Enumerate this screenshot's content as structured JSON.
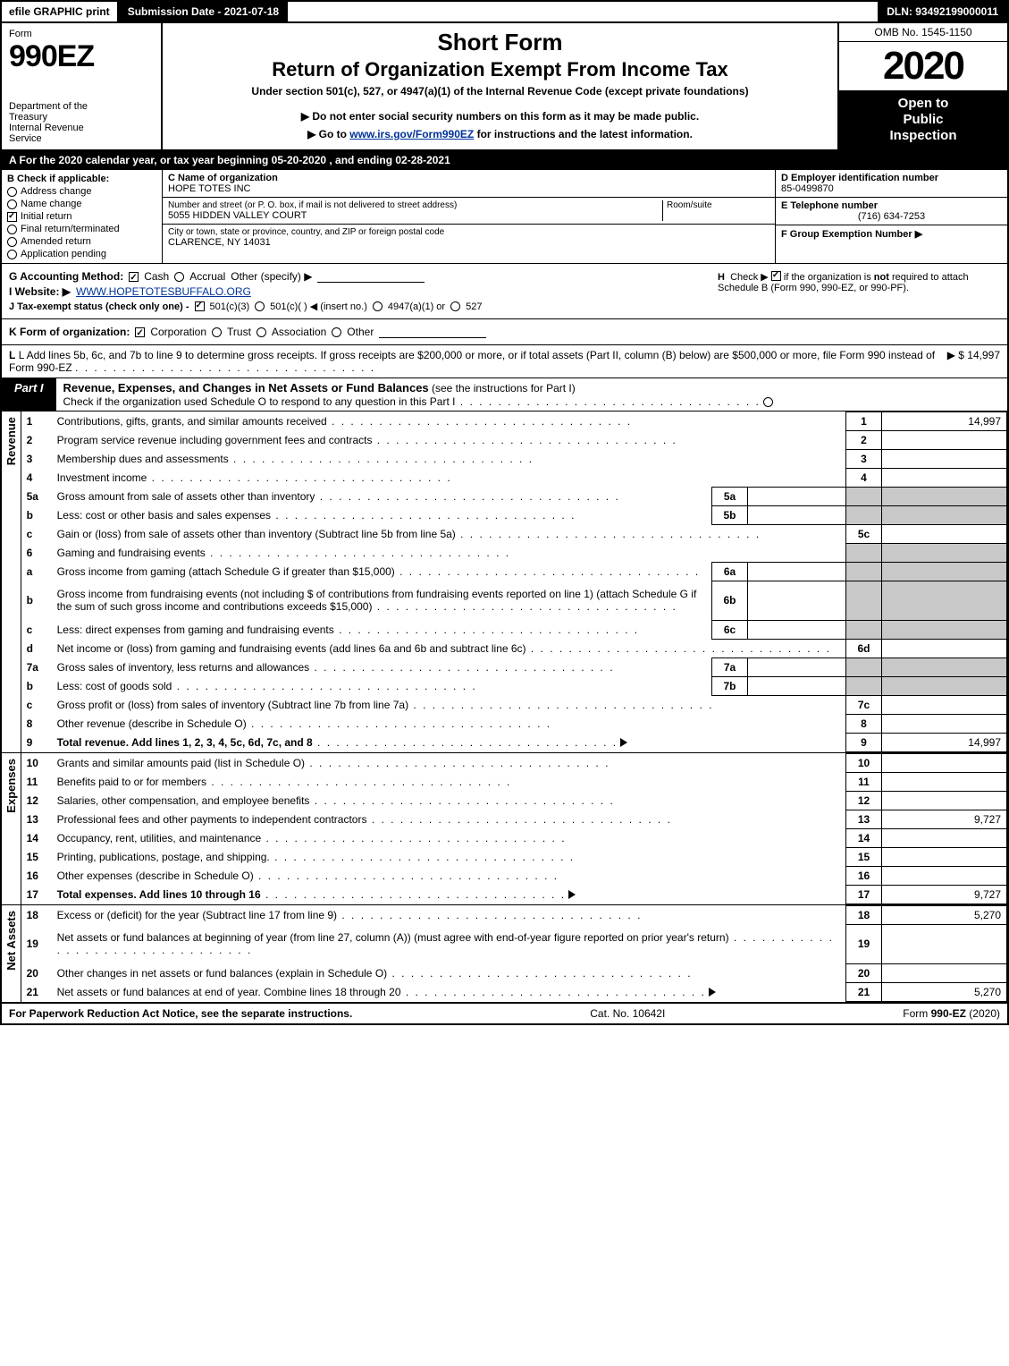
{
  "topbar": {
    "efile": "efile GRAPHIC print",
    "submission": "Submission Date - 2021-07-18",
    "dln": "DLN: 93492199000011"
  },
  "header": {
    "form_word": "Form",
    "form_num": "990EZ",
    "dept": "Department of the Treasury\nInternal Revenue Service",
    "short": "Short Form",
    "title2": "Return of Organization Exempt From Income Tax",
    "subtitle": "Under section 501(c), 527, or 4947(a)(1) of the Internal Revenue Code (except private foundations)",
    "warn_arrow": "▶",
    "warn": "Do not enter social security numbers on this form as it may be made public.",
    "goto_pre": "▶ Go to ",
    "goto_link": "www.irs.gov/Form990EZ",
    "goto_post": " for instructions and the latest information.",
    "omb": "OMB No. 1545-1150",
    "year": "2020",
    "open": "Open to Public Inspection"
  },
  "calyear": "A  For the 2020 calendar year, or tax year beginning 05-20-2020 , and ending 02-28-2021",
  "sectionB": {
    "title": "B  Check if applicable:",
    "items": [
      {
        "label": "Address change",
        "checked": false,
        "round": true
      },
      {
        "label": "Name change",
        "checked": false,
        "round": true
      },
      {
        "label": "Initial return",
        "checked": true,
        "round": false
      },
      {
        "label": "Final return/terminated",
        "checked": false,
        "round": true
      },
      {
        "label": "Amended return",
        "checked": false,
        "round": true
      },
      {
        "label": "Application pending",
        "checked": false,
        "round": true
      }
    ]
  },
  "sectionC": {
    "c_label": "C Name of organization",
    "org_name": "HOPE TOTES INC",
    "addr_label": "Number and street (or P. O. box, if mail is not delivered to street address)",
    "room_label": "Room/suite",
    "addr": "5055 HIDDEN VALLEY COURT",
    "city_label": "City or town, state or province, country, and ZIP or foreign postal code",
    "city": "CLARENCE, NY  14031"
  },
  "sectionRight": {
    "d_label": "D Employer identification number",
    "d_val": "85-0499870",
    "e_label": "E Telephone number",
    "e_val": "(716) 634-7253",
    "f_label": "F Group Exemption Number  ▶"
  },
  "meta": {
    "g_label": "G Accounting Method:",
    "g_cash": "Cash",
    "g_accrual": "Accrual",
    "g_other": "Other (specify) ▶",
    "h_text": "H  Check ▶ ",
    "h_text2": " if the organization is not required to attach Schedule B (Form 990, 990-EZ, or 990-PF).",
    "i_label": "I Website: ▶",
    "i_val": "WWW.HOPETOTESBUFFALO.ORG",
    "j_label": "J Tax-exempt status (check only one) - ",
    "j_501c3": "501(c)(3)",
    "j_501c": "501(c)(   ) ◀ (insert no.)",
    "j_4947": "4947(a)(1) or",
    "j_527": "527",
    "k_label": "K Form of organization:",
    "k_corp": "Corporation",
    "k_trust": "Trust",
    "k_assoc": "Association",
    "k_other": "Other",
    "l_text": "L Add lines 5b, 6c, and 7b to line 9 to determine gross receipts. If gross receipts are $200,000 or more, or if total assets (Part II, column (B) below) are $500,000 or more, file Form 990 instead of Form 990-EZ",
    "l_val": "▶ $ 14,997"
  },
  "part1": {
    "label": "Part I",
    "title": "Revenue, Expenses, and Changes in Net Assets or Fund Balances",
    "title_paren": " (see the instructions for Part I)",
    "check_line": "Check if the organization used Schedule O to respond to any question in this Part I",
    "check_mark": "☐"
  },
  "sidebars": {
    "revenue": "Revenue",
    "expenses": "Expenses",
    "netassets": "Net Assets"
  },
  "rows": [
    {
      "n": "1",
      "desc": "Contributions, gifts, grants, and similar amounts received",
      "rn": "1",
      "rv": "14,997"
    },
    {
      "n": "2",
      "desc": "Program service revenue including government fees and contracts",
      "rn": "2",
      "rv": ""
    },
    {
      "n": "3",
      "desc": "Membership dues and assessments",
      "rn": "3",
      "rv": ""
    },
    {
      "n": "4",
      "desc": "Investment income",
      "rn": "4",
      "rv": ""
    },
    {
      "n": "5a",
      "desc": "Gross amount from sale of assets other than inventory",
      "sn": "5a",
      "sv": "",
      "grey": true
    },
    {
      "n": "b",
      "desc": "Less: cost or other basis and sales expenses",
      "sn": "5b",
      "sv": "",
      "grey": true
    },
    {
      "n": "c",
      "desc": "Gain or (loss) from sale of assets other than inventory (Subtract line 5b from line 5a)",
      "rn": "5c",
      "rv": ""
    },
    {
      "n": "6",
      "desc": "Gaming and fundraising events",
      "grey": true,
      "noboxes": true
    },
    {
      "n": "a",
      "desc": "Gross income from gaming (attach Schedule G if greater than $15,000)",
      "sn": "6a",
      "sv": "",
      "grey": true
    },
    {
      "n": "b",
      "desc": "Gross income from fundraising events (not including $                    of contributions from fundraising events reported on line 1) (attach Schedule G if the sum of such gross income and contributions exceeds $15,000)",
      "sn": "6b",
      "sv": "",
      "grey": true,
      "tall": true
    },
    {
      "n": "c",
      "desc": "Less: direct expenses from gaming and fundraising events",
      "sn": "6c",
      "sv": "",
      "grey": true
    },
    {
      "n": "d",
      "desc": "Net income or (loss) from gaming and fundraising events (add lines 6a and 6b and subtract line 6c)",
      "rn": "6d",
      "rv": ""
    },
    {
      "n": "7a",
      "desc": "Gross sales of inventory, less returns and allowances",
      "sn": "7a",
      "sv": "",
      "grey": true
    },
    {
      "n": "b",
      "desc": "Less: cost of goods sold",
      "sn": "7b",
      "sv": "",
      "grey": true
    },
    {
      "n": "c",
      "desc": "Gross profit or (loss) from sales of inventory (Subtract line 7b from line 7a)",
      "rn": "7c",
      "rv": ""
    },
    {
      "n": "8",
      "desc": "Other revenue (describe in Schedule O)",
      "rn": "8",
      "rv": ""
    },
    {
      "n": "9",
      "desc": "Total revenue. Add lines 1, 2, 3, 4, 5c, 6d, 7c, and 8",
      "rn": "9",
      "rv": "14,997",
      "bold": true,
      "arrow": true
    }
  ],
  "rows_exp": [
    {
      "n": "10",
      "desc": "Grants and similar amounts paid (list in Schedule O)",
      "rn": "10",
      "rv": ""
    },
    {
      "n": "11",
      "desc": "Benefits paid to or for members",
      "rn": "11",
      "rv": ""
    },
    {
      "n": "12",
      "desc": "Salaries, other compensation, and employee benefits",
      "rn": "12",
      "rv": ""
    },
    {
      "n": "13",
      "desc": "Professional fees and other payments to independent contractors",
      "rn": "13",
      "rv": "9,727"
    },
    {
      "n": "14",
      "desc": "Occupancy, rent, utilities, and maintenance",
      "rn": "14",
      "rv": ""
    },
    {
      "n": "15",
      "desc": "Printing, publications, postage, and shipping.",
      "rn": "15",
      "rv": ""
    },
    {
      "n": "16",
      "desc": "Other expenses (describe in Schedule O)",
      "rn": "16",
      "rv": ""
    },
    {
      "n": "17",
      "desc": "Total expenses. Add lines 10 through 16",
      "rn": "17",
      "rv": "9,727",
      "bold": true,
      "arrow": true
    }
  ],
  "rows_na": [
    {
      "n": "18",
      "desc": "Excess or (deficit) for the year (Subtract line 17 from line 9)",
      "rn": "18",
      "rv": "5,270"
    },
    {
      "n": "19",
      "desc": "Net assets or fund balances at beginning of year (from line 27, column (A)) (must agree with end-of-year figure reported on prior year's return)",
      "rn": "19",
      "rv": "",
      "tall": true
    },
    {
      "n": "20",
      "desc": "Other changes in net assets or fund balances (explain in Schedule O)",
      "rn": "20",
      "rv": ""
    },
    {
      "n": "21",
      "desc": "Net assets or fund balances at end of year. Combine lines 18 through 20",
      "rn": "21",
      "rv": "5,270",
      "arrow": true
    }
  ],
  "footer": {
    "left": "For Paperwork Reduction Act Notice, see the separate instructions.",
    "mid": "Cat. No. 10642I",
    "right": "Form 990-EZ (2020)"
  },
  "colors": {
    "black": "#000000",
    "white": "#ffffff",
    "grey": "#c8c8c8",
    "link": "#003399"
  }
}
